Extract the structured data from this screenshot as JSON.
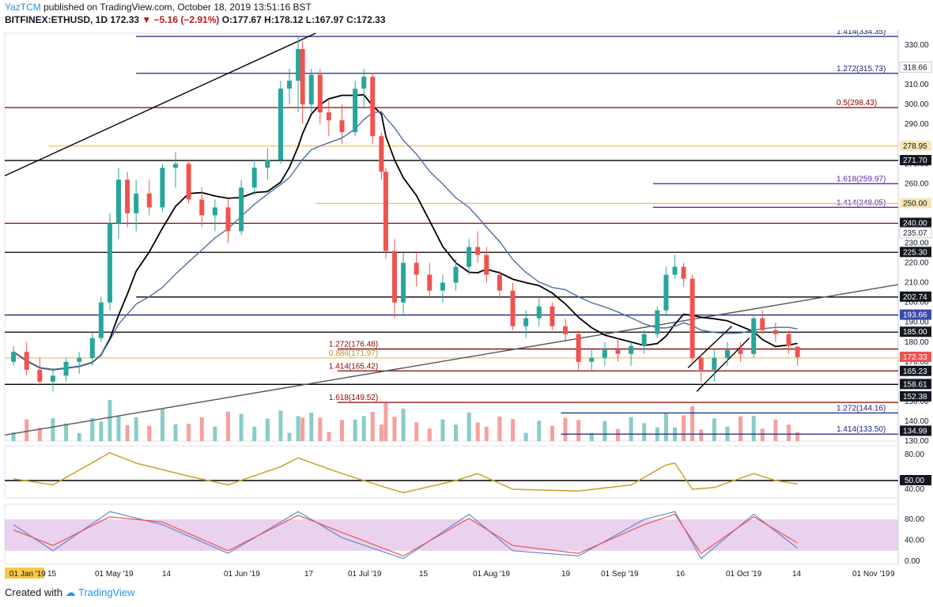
{
  "header": {
    "publisher": "YazTCM",
    "published_text": "published on TradingView.com, October 18, 2019 13:51:16 BST",
    "symbol": "BITFINEX:ETHUSD, 1D",
    "last": "172.33",
    "change": "−5.16 (−2.91%)",
    "ohlc": "O:177.67 H:178.12 L:167.97 C:172.33"
  },
  "footer": {
    "created_with": "Created with",
    "brand": "TradingView"
  },
  "colors": {
    "up": "#26a69a",
    "down": "#ef5350",
    "fib_blue": "#1a237e",
    "purple": "#5b2aa8",
    "dark_red": "#8b0000",
    "gold_line": "#f0c060",
    "black_line": "#000000",
    "ma_blue": "#4a6fa5",
    "rsi": "#c9a227",
    "stoch_band": "#e1bee7",
    "stoch_k": "#5d8bd4",
    "stoch_d": "#ef5350"
  },
  "chart_data": {
    "type": "candlestick",
    "x_range": [
      "2019-04-20",
      "2019-11-10"
    ],
    "y_range": [
      130,
      336
    ],
    "x_tick_labels": [
      "01 Jan '19",
      "15",
      "01 May '19",
      "14",
      "01 Jun '19",
      "17",
      "01 Jul '19",
      "15",
      "01 Aug '19",
      "19",
      "01 Sep '19",
      "16",
      "01 Oct '19",
      "14",
      "01 Nov '19",
      "9"
    ],
    "y_tick_labels": [
      "330.00",
      "310.00",
      "300.00",
      "290.00",
      "280.00",
      "270.00",
      "260.00",
      "250.00",
      "240.00",
      "230.00",
      "220.00",
      "210.00",
      "200.00",
      "190.00",
      "180.00",
      "170.00",
      "150.00",
      "140.00",
      "130.00"
    ],
    "price_tags": [
      {
        "text": "318.66",
        "value": 318.66,
        "style": "plain"
      },
      {
        "text": "278.95",
        "value": 278.95,
        "style": "gold"
      },
      {
        "text": "271.70",
        "value": 271.7,
        "style": "dark"
      },
      {
        "text": "250.00",
        "value": 250.0,
        "style": "gold"
      },
      {
        "text": "240.00",
        "value": 240.0,
        "style": "dark"
      },
      {
        "text": "235.07",
        "value": 235.07,
        "style": "plain"
      },
      {
        "text": "225.30",
        "value": 225.3,
        "style": "dark"
      },
      {
        "text": "202.74",
        "value": 202.74,
        "style": "dark"
      },
      {
        "text": "193.66",
        "value": 193.66,
        "style": "blue"
      },
      {
        "text": "185.00",
        "value": 185.0,
        "style": "dark"
      },
      {
        "text": "172.33",
        "value": 172.33,
        "style": "red"
      },
      {
        "text": "165.23",
        "value": 165.23,
        "style": "dark"
      },
      {
        "text": "158.61",
        "value": 158.61,
        "style": "dark"
      },
      {
        "text": "152.38",
        "value": 152.38,
        "style": "dark"
      },
      {
        "text": "134.99",
        "value": 134.99,
        "style": "dark"
      }
    ],
    "levels": [
      {
        "label": "1.414(334.35)",
        "value": 334.35,
        "color": "#1a237e",
        "from": "2019-05-20"
      },
      {
        "label": "1.272(315.73)",
        "value": 315.73,
        "color": "#1a237e",
        "from": "2019-05-20"
      },
      {
        "label": "0.5(298.43)",
        "value": 298.43,
        "color": "#8b0000",
        "from": "2019-04-20"
      },
      {
        "label": "",
        "value": 278.95,
        "color": "#f0c060",
        "from": "2019-04-30"
      },
      {
        "label": "",
        "value": 271.7,
        "color": "#000000",
        "from": "2019-04-20"
      },
      {
        "label": "1.618(259.97)",
        "value": 259.97,
        "color": "#5b2aa8",
        "from": "2019-09-15"
      },
      {
        "label": "1.414(248.05)",
        "value": 248.05,
        "color": "#5b2aa8",
        "from": "2019-09-15"
      },
      {
        "label": "",
        "value": 250.0,
        "color": "#f0c060",
        "from": "2019-06-30"
      },
      {
        "label": "",
        "value": 240.0,
        "color": "#8b0000",
        "from": "2019-04-20"
      },
      {
        "label": "",
        "value": 225.3,
        "color": "#000000",
        "from": "2019-04-20"
      },
      {
        "label": "",
        "value": 202.74,
        "color": "#000000",
        "from": "2019-05-20"
      },
      {
        "label": "",
        "value": 193.66,
        "color": "#1a237e",
        "from": "2019-04-20"
      },
      {
        "label": "",
        "value": 185.0,
        "color": "#000000",
        "from": "2019-04-20"
      },
      {
        "label": "1.272(176.48)",
        "value": 176.48,
        "color": "#8b0000",
        "from": "2019-07-05"
      },
      {
        "label": "0.886(171.97)",
        "value": 171.97,
        "color": "#f0c060",
        "from": "2019-04-20"
      },
      {
        "label": "1.414(165.42)",
        "value": 165.42,
        "color": "#8b0000",
        "from": "2019-07-05"
      },
      {
        "label": "",
        "value": 158.61,
        "color": "#000000",
        "from": "2019-04-20"
      },
      {
        "label": "1.618(149.52)",
        "value": 149.52,
        "color": "#8b0000",
        "from": "2019-07-05"
      },
      {
        "label": "1.272(144.16)",
        "value": 144.16,
        "color": "#1a237e",
        "from": "2019-08-25"
      },
      {
        "label": "1.414(133.50)",
        "value": 133.5,
        "color": "#1a237e",
        "from": "2019-08-25"
      }
    ],
    "trendlines": [
      {
        "from": [
          "2019-04-20",
          264
        ],
        "to": [
          "2019-06-30",
          336
        ],
        "color": "#000000"
      },
      {
        "from": [
          "2019-04-20",
          133
        ],
        "to": [
          "2019-11-10",
          209
        ],
        "color": "#555555"
      },
      {
        "from": [
          "2019-09-23",
          167
        ],
        "to": [
          "2019-10-03",
          188
        ],
        "color": "#000000"
      },
      {
        "from": [
          "2019-09-25",
          155
        ],
        "to": [
          "2019-10-07",
          182
        ],
        "color": "#000000"
      }
    ],
    "candles": [
      [
        "2019-04-22",
        170,
        178,
        168,
        175
      ],
      [
        "2019-04-25",
        175,
        180,
        163,
        166
      ],
      [
        "2019-04-28",
        166,
        172,
        158,
        160
      ],
      [
        "2019-05-01",
        160,
        167,
        155,
        163
      ],
      [
        "2019-05-04",
        163,
        172,
        160,
        170
      ],
      [
        "2019-05-07",
        170,
        175,
        164,
        172
      ],
      [
        "2019-05-10",
        172,
        185,
        168,
        182
      ],
      [
        "2019-05-12",
        182,
        203,
        180,
        200
      ],
      [
        "2019-05-14",
        200,
        245,
        196,
        240
      ],
      [
        "2019-05-16",
        240,
        268,
        232,
        262
      ],
      [
        "2019-05-18",
        262,
        266,
        238,
        245
      ],
      [
        "2019-05-20",
        245,
        262,
        236,
        255
      ],
      [
        "2019-05-23",
        255,
        262,
        244,
        248
      ],
      [
        "2019-05-26",
        248,
        270,
        246,
        268
      ],
      [
        "2019-05-29",
        268,
        276,
        258,
        270
      ],
      [
        "2019-06-01",
        270,
        272,
        250,
        252
      ],
      [
        "2019-06-04",
        252,
        258,
        238,
        244
      ],
      [
        "2019-06-07",
        244,
        252,
        236,
        248
      ],
      [
        "2019-06-10",
        248,
        252,
        230,
        236
      ],
      [
        "2019-06-13",
        236,
        262,
        234,
        258
      ],
      [
        "2019-06-16",
        258,
        272,
        254,
        268
      ],
      [
        "2019-06-19",
        268,
        278,
        262,
        272
      ],
      [
        "2019-06-22",
        272,
        312,
        270,
        308
      ],
      [
        "2019-06-24",
        308,
        318,
        300,
        312
      ],
      [
        "2019-06-26",
        312,
        334,
        296,
        328
      ],
      [
        "2019-06-27",
        328,
        332,
        290,
        300
      ],
      [
        "2019-06-29",
        300,
        318,
        296,
        315
      ],
      [
        "2019-07-01",
        315,
        318,
        290,
        296
      ],
      [
        "2019-07-03",
        296,
        302,
        284,
        292
      ],
      [
        "2019-07-06",
        292,
        300,
        280,
        286
      ],
      [
        "2019-07-09",
        286,
        312,
        284,
        308
      ],
      [
        "2019-07-11",
        308,
        318,
        298,
        314
      ],
      [
        "2019-07-13",
        314,
        316,
        280,
        284
      ],
      [
        "2019-07-15",
        284,
        286,
        262,
        266
      ],
      [
        "2019-07-16",
        266,
        268,
        222,
        226
      ],
      [
        "2019-07-18",
        226,
        232,
        192,
        200
      ],
      [
        "2019-07-20",
        200,
        226,
        194,
        220
      ],
      [
        "2019-07-23",
        220,
        226,
        208,
        214
      ],
      [
        "2019-07-26",
        214,
        220,
        202,
        206
      ],
      [
        "2019-07-29",
        206,
        214,
        200,
        210
      ],
      [
        "2019-08-01",
        210,
        222,
        206,
        218
      ],
      [
        "2019-08-04",
        218,
        232,
        214,
        228
      ],
      [
        "2019-08-06",
        228,
        236,
        220,
        224
      ],
      [
        "2019-08-08",
        224,
        228,
        210,
        214
      ],
      [
        "2019-08-11",
        214,
        216,
        202,
        206
      ],
      [
        "2019-08-14",
        206,
        210,
        186,
        188
      ],
      [
        "2019-08-17",
        188,
        196,
        182,
        192
      ],
      [
        "2019-08-20",
        192,
        202,
        188,
        198
      ],
      [
        "2019-08-23",
        198,
        200,
        186,
        188
      ],
      [
        "2019-08-26",
        188,
        192,
        180,
        184
      ],
      [
        "2019-08-29",
        184,
        186,
        166,
        170
      ],
      [
        "2019-09-01",
        170,
        176,
        166,
        172
      ],
      [
        "2019-09-04",
        172,
        180,
        168,
        176
      ],
      [
        "2019-09-07",
        176,
        182,
        170,
        174
      ],
      [
        "2019-09-10",
        174,
        180,
        168,
        178
      ],
      [
        "2019-09-13",
        178,
        186,
        174,
        184
      ],
      [
        "2019-09-16",
        184,
        198,
        182,
        196
      ],
      [
        "2019-09-18",
        196,
        218,
        194,
        214
      ],
      [
        "2019-09-20",
        214,
        224,
        212,
        218
      ],
      [
        "2019-09-22",
        218,
        220,
        208,
        212
      ],
      [
        "2019-09-24",
        212,
        214,
        170,
        172
      ],
      [
        "2019-09-26",
        172,
        174,
        160,
        166
      ],
      [
        "2019-09-29",
        166,
        176,
        160,
        172
      ],
      [
        "2019-10-02",
        172,
        180,
        168,
        176
      ],
      [
        "2019-10-05",
        176,
        180,
        170,
        174
      ],
      [
        "2019-10-08",
        174,
        194,
        172,
        192
      ],
      [
        "2019-10-10",
        192,
        196,
        184,
        186
      ],
      [
        "2019-10-13",
        186,
        190,
        180,
        184
      ],
      [
        "2019-10-16",
        184,
        186,
        174,
        178
      ],
      [
        "2019-10-18",
        177.67,
        178.12,
        167.97,
        172.33
      ]
    ],
    "rsi": {
      "y_tick_labels": [
        "80.00",
        "50.00",
        "40.00"
      ],
      "level_tag": "50.00",
      "values": [
        [
          "2019-04-22",
          52
        ],
        [
          "2019-05-01",
          45
        ],
        [
          "2019-05-14",
          82
        ],
        [
          "2019-05-20",
          70
        ],
        [
          "2019-06-01",
          55
        ],
        [
          "2019-06-10",
          45
        ],
        [
          "2019-06-22",
          66
        ],
        [
          "2019-06-26",
          76
        ],
        [
          "2019-07-06",
          58
        ],
        [
          "2019-07-16",
          42
        ],
        [
          "2019-07-20",
          36
        ],
        [
          "2019-08-01",
          50
        ],
        [
          "2019-08-06",
          58
        ],
        [
          "2019-08-14",
          40
        ],
        [
          "2019-08-29",
          38
        ],
        [
          "2019-09-10",
          45
        ],
        [
          "2019-09-18",
          68
        ],
        [
          "2019-09-20",
          70
        ],
        [
          "2019-09-24",
          40
        ],
        [
          "2019-09-29",
          42
        ],
        [
          "2019-10-08",
          58
        ],
        [
          "2019-10-13",
          50
        ],
        [
          "2019-10-18",
          46
        ]
      ]
    },
    "stoch": {
      "y_tick_labels": [
        "80.00",
        "40.00",
        "0.00"
      ],
      "k": [
        [
          "2019-04-22",
          70
        ],
        [
          "2019-05-01",
          20
        ],
        [
          "2019-05-14",
          95
        ],
        [
          "2019-05-26",
          70
        ],
        [
          "2019-06-10",
          15
        ],
        [
          "2019-06-26",
          95
        ],
        [
          "2019-07-06",
          45
        ],
        [
          "2019-07-20",
          5
        ],
        [
          "2019-08-04",
          90
        ],
        [
          "2019-08-14",
          20
        ],
        [
          "2019-08-29",
          10
        ],
        [
          "2019-09-13",
          80
        ],
        [
          "2019-09-20",
          95
        ],
        [
          "2019-09-26",
          5
        ],
        [
          "2019-10-08",
          90
        ],
        [
          "2019-10-18",
          25
        ]
      ],
      "d": [
        [
          "2019-04-22",
          60
        ],
        [
          "2019-05-01",
          30
        ],
        [
          "2019-05-14",
          85
        ],
        [
          "2019-05-26",
          75
        ],
        [
          "2019-06-10",
          20
        ],
        [
          "2019-06-26",
          88
        ],
        [
          "2019-07-06",
          55
        ],
        [
          "2019-07-20",
          10
        ],
        [
          "2019-08-04",
          82
        ],
        [
          "2019-08-14",
          30
        ],
        [
          "2019-08-29",
          15
        ],
        [
          "2019-09-13",
          70
        ],
        [
          "2019-09-20",
          90
        ],
        [
          "2019-09-26",
          15
        ],
        [
          "2019-10-08",
          85
        ],
        [
          "2019-10-18",
          35
        ]
      ]
    }
  }
}
